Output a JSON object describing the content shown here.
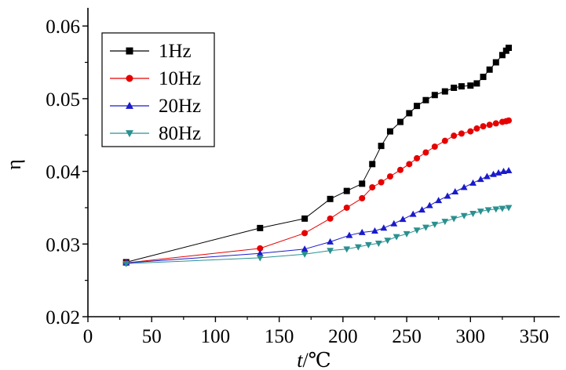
{
  "chart_data": {
    "type": "line",
    "xlabel_var": "t",
    "xlabel_unit": "/℃",
    "ylabel": "η",
    "xlim": [
      0,
      370
    ],
    "ylim": [
      0.02,
      0.0625
    ],
    "xticks": [
      0,
      50,
      100,
      150,
      200,
      250,
      300,
      350
    ],
    "yticks": [
      0.02,
      0.03,
      0.04,
      0.05,
      0.06
    ],
    "ytick_labels": [
      "0.02",
      "0.03",
      "0.04",
      "0.05",
      "0.06"
    ],
    "legend_position": "top-left",
    "series": [
      {
        "name": "1Hz",
        "color": "#000000",
        "marker": "square",
        "x": [
          30,
          135,
          170,
          190,
          203,
          215,
          223,
          230,
          237,
          245,
          252,
          258,
          265,
          272,
          280,
          287,
          293,
          300,
          305,
          310,
          315,
          320,
          325,
          328,
          330
        ],
        "y": [
          0.0275,
          0.0322,
          0.0335,
          0.0362,
          0.0373,
          0.0383,
          0.041,
          0.0435,
          0.0455,
          0.0468,
          0.048,
          0.049,
          0.0498,
          0.0505,
          0.051,
          0.0515,
          0.0517,
          0.0518,
          0.0521,
          0.053,
          0.054,
          0.055,
          0.056,
          0.0566,
          0.057
        ]
      },
      {
        "name": "10Hz",
        "color": "#e60000",
        "marker": "circle",
        "x": [
          30,
          135,
          170,
          190,
          203,
          215,
          223,
          230,
          237,
          245,
          252,
          258,
          265,
          272,
          280,
          287,
          293,
          300,
          305,
          310,
          315,
          320,
          325,
          328,
          330
        ],
        "y": [
          0.0274,
          0.0294,
          0.0315,
          0.0335,
          0.035,
          0.0363,
          0.0378,
          0.0385,
          0.0393,
          0.0402,
          0.041,
          0.0418,
          0.0426,
          0.0434,
          0.0442,
          0.0449,
          0.0452,
          0.0455,
          0.0459,
          0.0462,
          0.0464,
          0.0466,
          0.0468,
          0.0469,
          0.047
        ]
      },
      {
        "name": "20Hz",
        "color": "#1a1acc",
        "marker": "triangle-up",
        "x": [
          30,
          135,
          170,
          190,
          205,
          215,
          225,
          232,
          240,
          247,
          255,
          262,
          268,
          275,
          282,
          288,
          295,
          302,
          308,
          313,
          318,
          322,
          326,
          330
        ],
        "y": [
          0.0274,
          0.0287,
          0.0293,
          0.0303,
          0.0312,
          0.0316,
          0.0318,
          0.0322,
          0.0328,
          0.0334,
          0.0341,
          0.0347,
          0.0353,
          0.036,
          0.0366,
          0.0372,
          0.0378,
          0.0384,
          0.0389,
          0.0393,
          0.0396,
          0.0398,
          0.04,
          0.0401
        ]
      },
      {
        "name": "80Hz",
        "color": "#2a9090",
        "marker": "triangle-down",
        "x": [
          30,
          135,
          170,
          190,
          203,
          212,
          220,
          228,
          235,
          242,
          250,
          258,
          265,
          272,
          280,
          287,
          295,
          302,
          308,
          314,
          320,
          325,
          330
        ],
        "y": [
          0.0273,
          0.0281,
          0.0286,
          0.0291,
          0.0293,
          0.0296,
          0.0299,
          0.0301,
          0.0305,
          0.031,
          0.0314,
          0.0319,
          0.0323,
          0.0327,
          0.0331,
          0.0335,
          0.0339,
          0.0342,
          0.0345,
          0.0347,
          0.0348,
          0.0349,
          0.035
        ]
      }
    ]
  }
}
